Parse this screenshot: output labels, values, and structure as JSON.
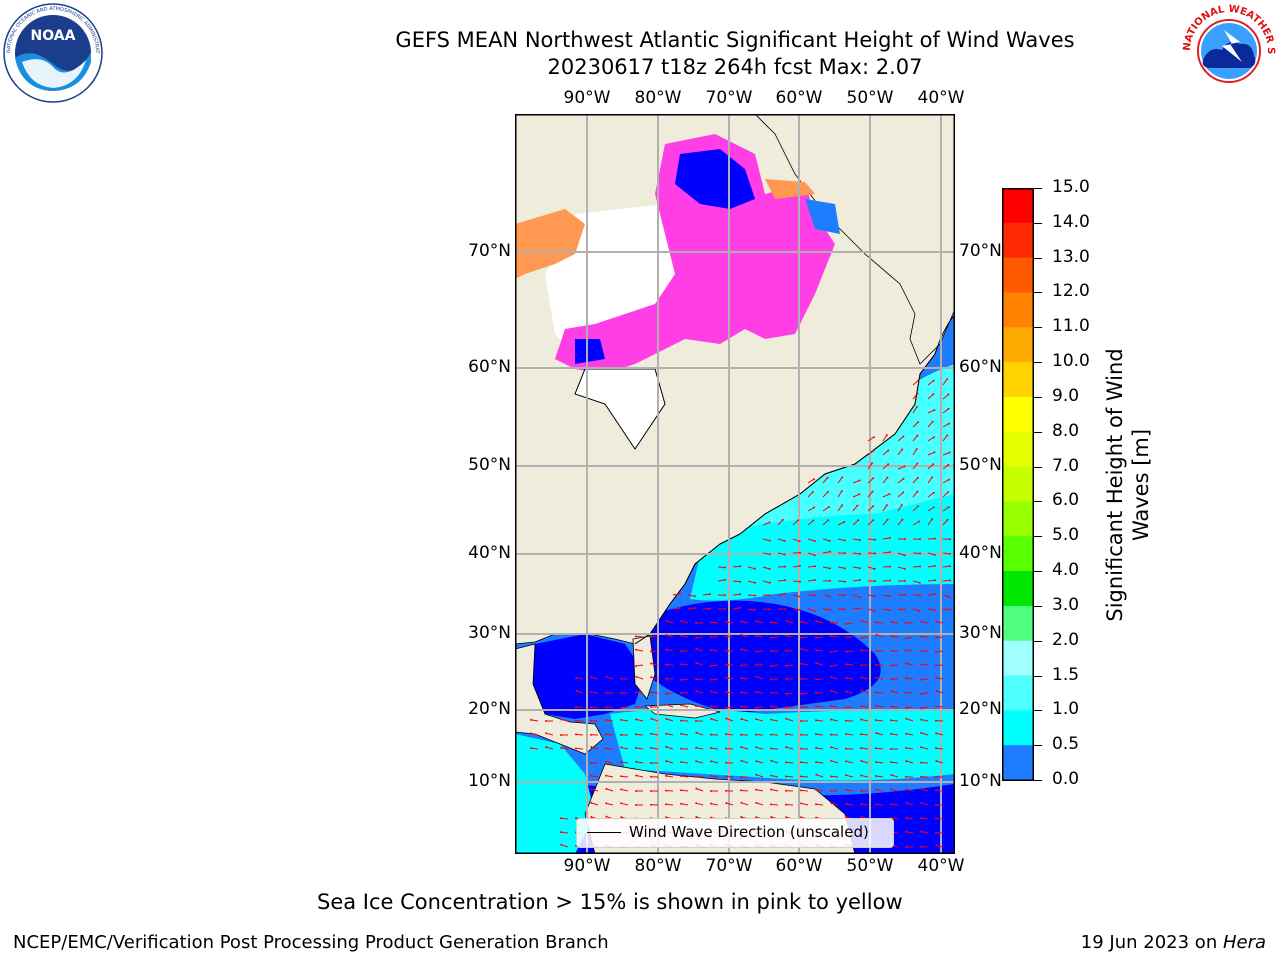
{
  "header": {
    "title": "GEFS MEAN Northwest Atlantic Significant Height of Wind Waves",
    "subtitle": "20230617 t18z 264h fcst   Max: 2.07"
  },
  "logos": {
    "left": "NOAA",
    "left_ring": "NATIONAL OCEANIC AND ATMOSPHERIC ADMINISTRATION · U.S. DEPARTMENT OF COMMERCE",
    "right_ring": "NATIONAL WEATHER SERVICE"
  },
  "map": {
    "lon_labels": [
      "90°W",
      "80°W",
      "70°W",
      "60°W",
      "50°W",
      "40°W"
    ],
    "lat_labels": [
      "70°N",
      "60°N",
      "50°N",
      "40°N",
      "30°N",
      "20°N",
      "10°N"
    ],
    "colors": {
      "land": "#efecdc",
      "ice_white": "#ffffff",
      "wave_0_0p5": "#0000ff",
      "wave_0p5_1": "#1e7cff",
      "wave_1_1p5": "#00ffff",
      "wave_1p5_2": "#48ffff",
      "ice_pink": "#ff3ee6",
      "ice_orange": "#ff9850",
      "arrow": "#ff0000",
      "grid": "#b0b0b0"
    },
    "legend": "Wind Wave Direction (unscaled)"
  },
  "colorbar": {
    "label": "Significant Height of Wind Waves [m]",
    "ticks": [
      "15.0",
      "14.0",
      "13.0",
      "12.0",
      "11.0",
      "10.0",
      "9.0",
      "8.0",
      "7.0",
      "6.0",
      "5.0",
      "4.0",
      "3.0",
      "2.0",
      "1.5",
      "1.0",
      "0.5",
      "0.0"
    ],
    "colors": [
      "#ff0000",
      "#ff2800",
      "#ff5a00",
      "#ff8200",
      "#ffaa00",
      "#ffd200",
      "#ffff00",
      "#e6ff00",
      "#c8ff00",
      "#96ff00",
      "#5aff00",
      "#00e600",
      "#50ff80",
      "#a0ffff",
      "#50ffff",
      "#00ffff",
      "#1e7cff",
      "#0000ff"
    ]
  },
  "note": "Sea Ice Concentration > 15% is shown in pink to yellow",
  "footer": {
    "left": "NCEP/EMC/Verification Post Processing Product Generation Branch",
    "right_date": "19 Jun 2023 on ",
    "right_machine": "Hera"
  }
}
